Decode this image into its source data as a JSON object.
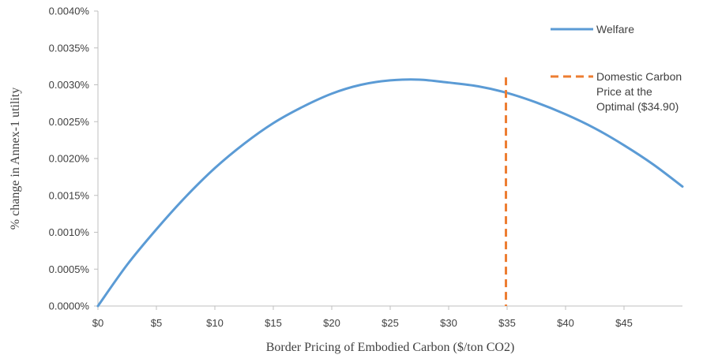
{
  "chart_data": {
    "type": "line",
    "title": "",
    "xlabel": "Border Pricing of Embodied Carbon ($/ton CO2)",
    "ylabel": "% change in Annex-1 utility",
    "xlim": [
      0,
      50
    ],
    "ylim": [
      0,
      0.004
    ],
    "x_ticks": [
      0,
      5,
      10,
      15,
      20,
      25,
      30,
      35,
      40,
      45
    ],
    "x_tick_labels": [
      "$0",
      "$5",
      "$10",
      "$15",
      "$20",
      "$25",
      "$30",
      "$35",
      "$40",
      "$45"
    ],
    "y_ticks": [
      0,
      0.0005,
      0.001,
      0.0015,
      0.002,
      0.0025,
      0.003,
      0.0035,
      0.004
    ],
    "y_tick_labels": [
      "0.0000%",
      "0.0005%",
      "0.0010%",
      "0.0015%",
      "0.0020%",
      "0.0025%",
      "0.0030%",
      "0.0035%",
      "0.0040%"
    ],
    "grid": false,
    "legend_position": "right",
    "series": [
      {
        "name": "Welfare",
        "color": "#5B9BD5",
        "style": "solid",
        "x": [
          0,
          2.5,
          5,
          7.5,
          10,
          12.5,
          15,
          17.5,
          20,
          22.5,
          25,
          27.5,
          30,
          32.5,
          35,
          37.5,
          40,
          42.5,
          45,
          47.5,
          50
        ],
        "y": [
          0,
          0.00056,
          0.00104,
          0.00148,
          0.00187,
          0.0022,
          0.00248,
          0.0027,
          0.00288,
          0.003,
          0.00306,
          0.00307,
          0.00303,
          0.00298,
          0.00289,
          0.00276,
          0.0026,
          0.00241,
          0.00218,
          0.00192,
          0.00162
        ]
      }
    ],
    "vertical_lines": [
      {
        "label": "Domestic Carbon Price at the Optimal ($34.90)",
        "label_lines": [
          "Domestic Carbon",
          "Price at the",
          "Optimal ($34.90)"
        ],
        "x": 34.9,
        "y_top": 0.0031,
        "color": "#ED7D31",
        "style": "dashed"
      }
    ]
  }
}
